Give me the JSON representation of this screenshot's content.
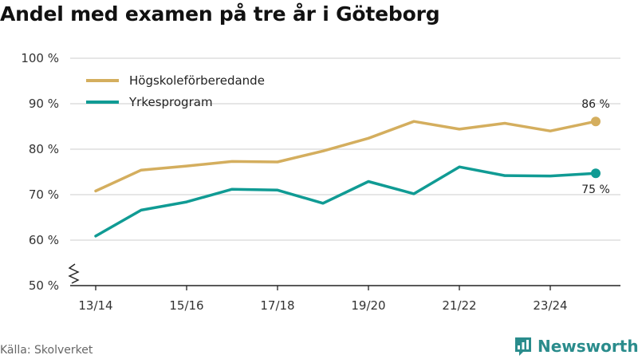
{
  "title": "Andel med examen på tre år i Göteborg",
  "source": "Källa: Skolverket",
  "brand": {
    "name": "Newsworthy",
    "icon": "newsworthy-logo-icon"
  },
  "colors": {
    "series_1": "#d4ae5e",
    "series_2": "#109b94",
    "grid": "#dddddd",
    "text": "#333333"
  },
  "chart_data": {
    "type": "line",
    "x": [
      "13/14",
      "14/15",
      "15/16",
      "16/17",
      "17/18",
      "18/19",
      "19/20",
      "20/21",
      "21/22",
      "22/23",
      "23/24",
      "24/25"
    ],
    "xticks": [
      "13/14",
      "15/16",
      "17/18",
      "19/20",
      "21/22",
      "23/24"
    ],
    "ylim": [
      50,
      100
    ],
    "yticks": [
      50,
      60,
      70,
      80,
      90,
      100
    ],
    "ytick_labels": [
      "50 %",
      "60 %",
      "70 %",
      "80 %",
      "90 %",
      "100 %"
    ],
    "axis_break": true,
    "grid": true,
    "legend_position": "top-left",
    "series": [
      {
        "name": "Högskoleförberedande",
        "values": [
          70.8,
          75.4,
          76.3,
          77.3,
          77.2,
          79.6,
          82.4,
          86.1,
          84.4,
          85.7,
          84.0,
          86.1
        ],
        "end_label": "86 %"
      },
      {
        "name": "Yrkesprogram",
        "values": [
          60.9,
          66.6,
          68.4,
          71.2,
          71.0,
          68.1,
          72.9,
          70.2,
          76.1,
          74.2,
          74.1,
          74.7
        ],
        "end_label": "75 %"
      }
    ]
  }
}
